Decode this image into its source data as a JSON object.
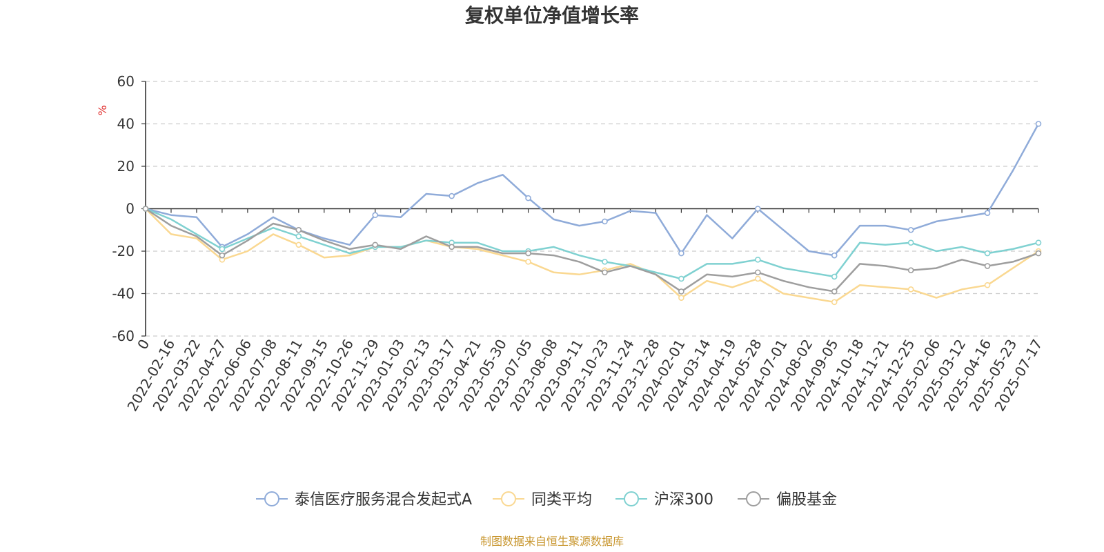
{
  "chart_data": {
    "type": "line",
    "title": "复权单位净值增长率",
    "ylabel": "%",
    "ylim": [
      -60,
      60
    ],
    "yticks": [
      "60",
      "40",
      "20",
      "0",
      "-20",
      "-40",
      "-60"
    ],
    "x_categories": [
      "0",
      "2022-02-16",
      "2022-03-22",
      "2022-04-27",
      "2022-06-06",
      "2022-07-08",
      "2022-08-11",
      "2022-09-15",
      "2022-10-26",
      "2022-11-29",
      "2023-01-03",
      "2023-02-13",
      "2023-03-17",
      "2023-04-21",
      "2023-05-30",
      "2023-07-05",
      "2023-08-08",
      "2023-09-11",
      "2023-10-23",
      "2023-11-24",
      "2023-12-28",
      "2024-02-01",
      "2024-03-14",
      "2024-04-19",
      "2024-05-28",
      "2024-07-01",
      "2024-08-02",
      "2024-09-05",
      "2024-10-18",
      "2024-11-21",
      "2024-12-25",
      "2025-02-06",
      "2025-03-12",
      "2025-04-16",
      "2025-05-23",
      "2025-07-17"
    ],
    "grid": true,
    "legend_position": "bottom",
    "series": [
      {
        "name": "泰信医疗服务混合发起式A",
        "color": "#8fabd9",
        "values": [
          0,
          -3,
          -4,
          -18,
          -12,
          -4,
          -10,
          -14,
          -17,
          -3,
          -4,
          7,
          6,
          12,
          16,
          5,
          -5,
          -8,
          -6,
          -1,
          -2,
          -21,
          -3,
          -14,
          0,
          -10,
          -20,
          -22,
          -8,
          -8,
          -10,
          -6,
          -4,
          -2,
          18,
          40
        ]
      },
      {
        "name": "同类平均",
        "color": "#fad891",
        "values": [
          0,
          -12,
          -14,
          -24,
          -20,
          -12,
          -17,
          -23,
          -22,
          -18,
          -18,
          -15,
          -18,
          -19,
          -22,
          -25,
          -30,
          -31,
          -29,
          -26,
          -31,
          -42,
          -34,
          -37,
          -33,
          -40,
          -42,
          -44,
          -36,
          -37,
          -38,
          -42,
          -38,
          -36,
          -28,
          -20
        ]
      },
      {
        "name": "沪深300",
        "color": "#7fd1d1",
        "values": [
          0,
          -5,
          -12,
          -19,
          -14,
          -9,
          -13,
          -17,
          -21,
          -18,
          -18,
          -15,
          -16,
          -16,
          -20,
          -20,
          -18,
          -22,
          -25,
          -27,
          -30,
          -33,
          -26,
          -26,
          -24,
          -28,
          -30,
          -32,
          -16,
          -17,
          -16,
          -20,
          -18,
          -21,
          -19,
          -16
        ]
      },
      {
        "name": "偏股基金",
        "color": "#9e9e9e",
        "values": [
          0,
          -8,
          -13,
          -22,
          -15,
          -7,
          -10,
          -15,
          -19,
          -17,
          -19,
          -13,
          -18,
          -18,
          -21,
          -21,
          -22,
          -25,
          -30,
          -27,
          -31,
          -39,
          -31,
          -32,
          -30,
          -34,
          -37,
          -39,
          -26,
          -27,
          -29,
          -28,
          -24,
          -27,
          -25,
          -21
        ]
      }
    ]
  },
  "source_note": "制图数据来自恒生聚源数据库"
}
